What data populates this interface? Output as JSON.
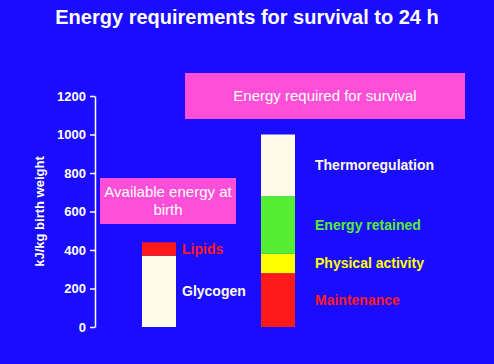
{
  "chart_data": {
    "type": "bar",
    "title": "Energy requirements for survival to 24 h",
    "y_label": "kJ/kg birth weight",
    "categories": [
      "Available energy at birth",
      "Energy required for survival"
    ],
    "stacked": true,
    "series": [
      {
        "name": "Glycogen",
        "color": "#fffbe6",
        "values": [
          370,
          null
        ]
      },
      {
        "name": "Lipids",
        "color": "#ff1a1a",
        "values": [
          70,
          null
        ]
      },
      {
        "name": "Maintenance",
        "color": "#ff1a1a",
        "values": [
          null,
          280
        ]
      },
      {
        "name": "Physical activity",
        "color": "#ffff00",
        "values": [
          null,
          100
        ]
      },
      {
        "name": "Energy retained",
        "color": "#55ee33",
        "values": [
          null,
          300
        ]
      },
      {
        "name": "Thermoregulation",
        "color": "#fffbe6",
        "values": [
          null,
          320
        ]
      }
    ],
    "ylim": [
      0,
      1200
    ],
    "yticks": [
      0,
      200,
      400,
      600,
      800,
      1000,
      1200
    ]
  }
}
